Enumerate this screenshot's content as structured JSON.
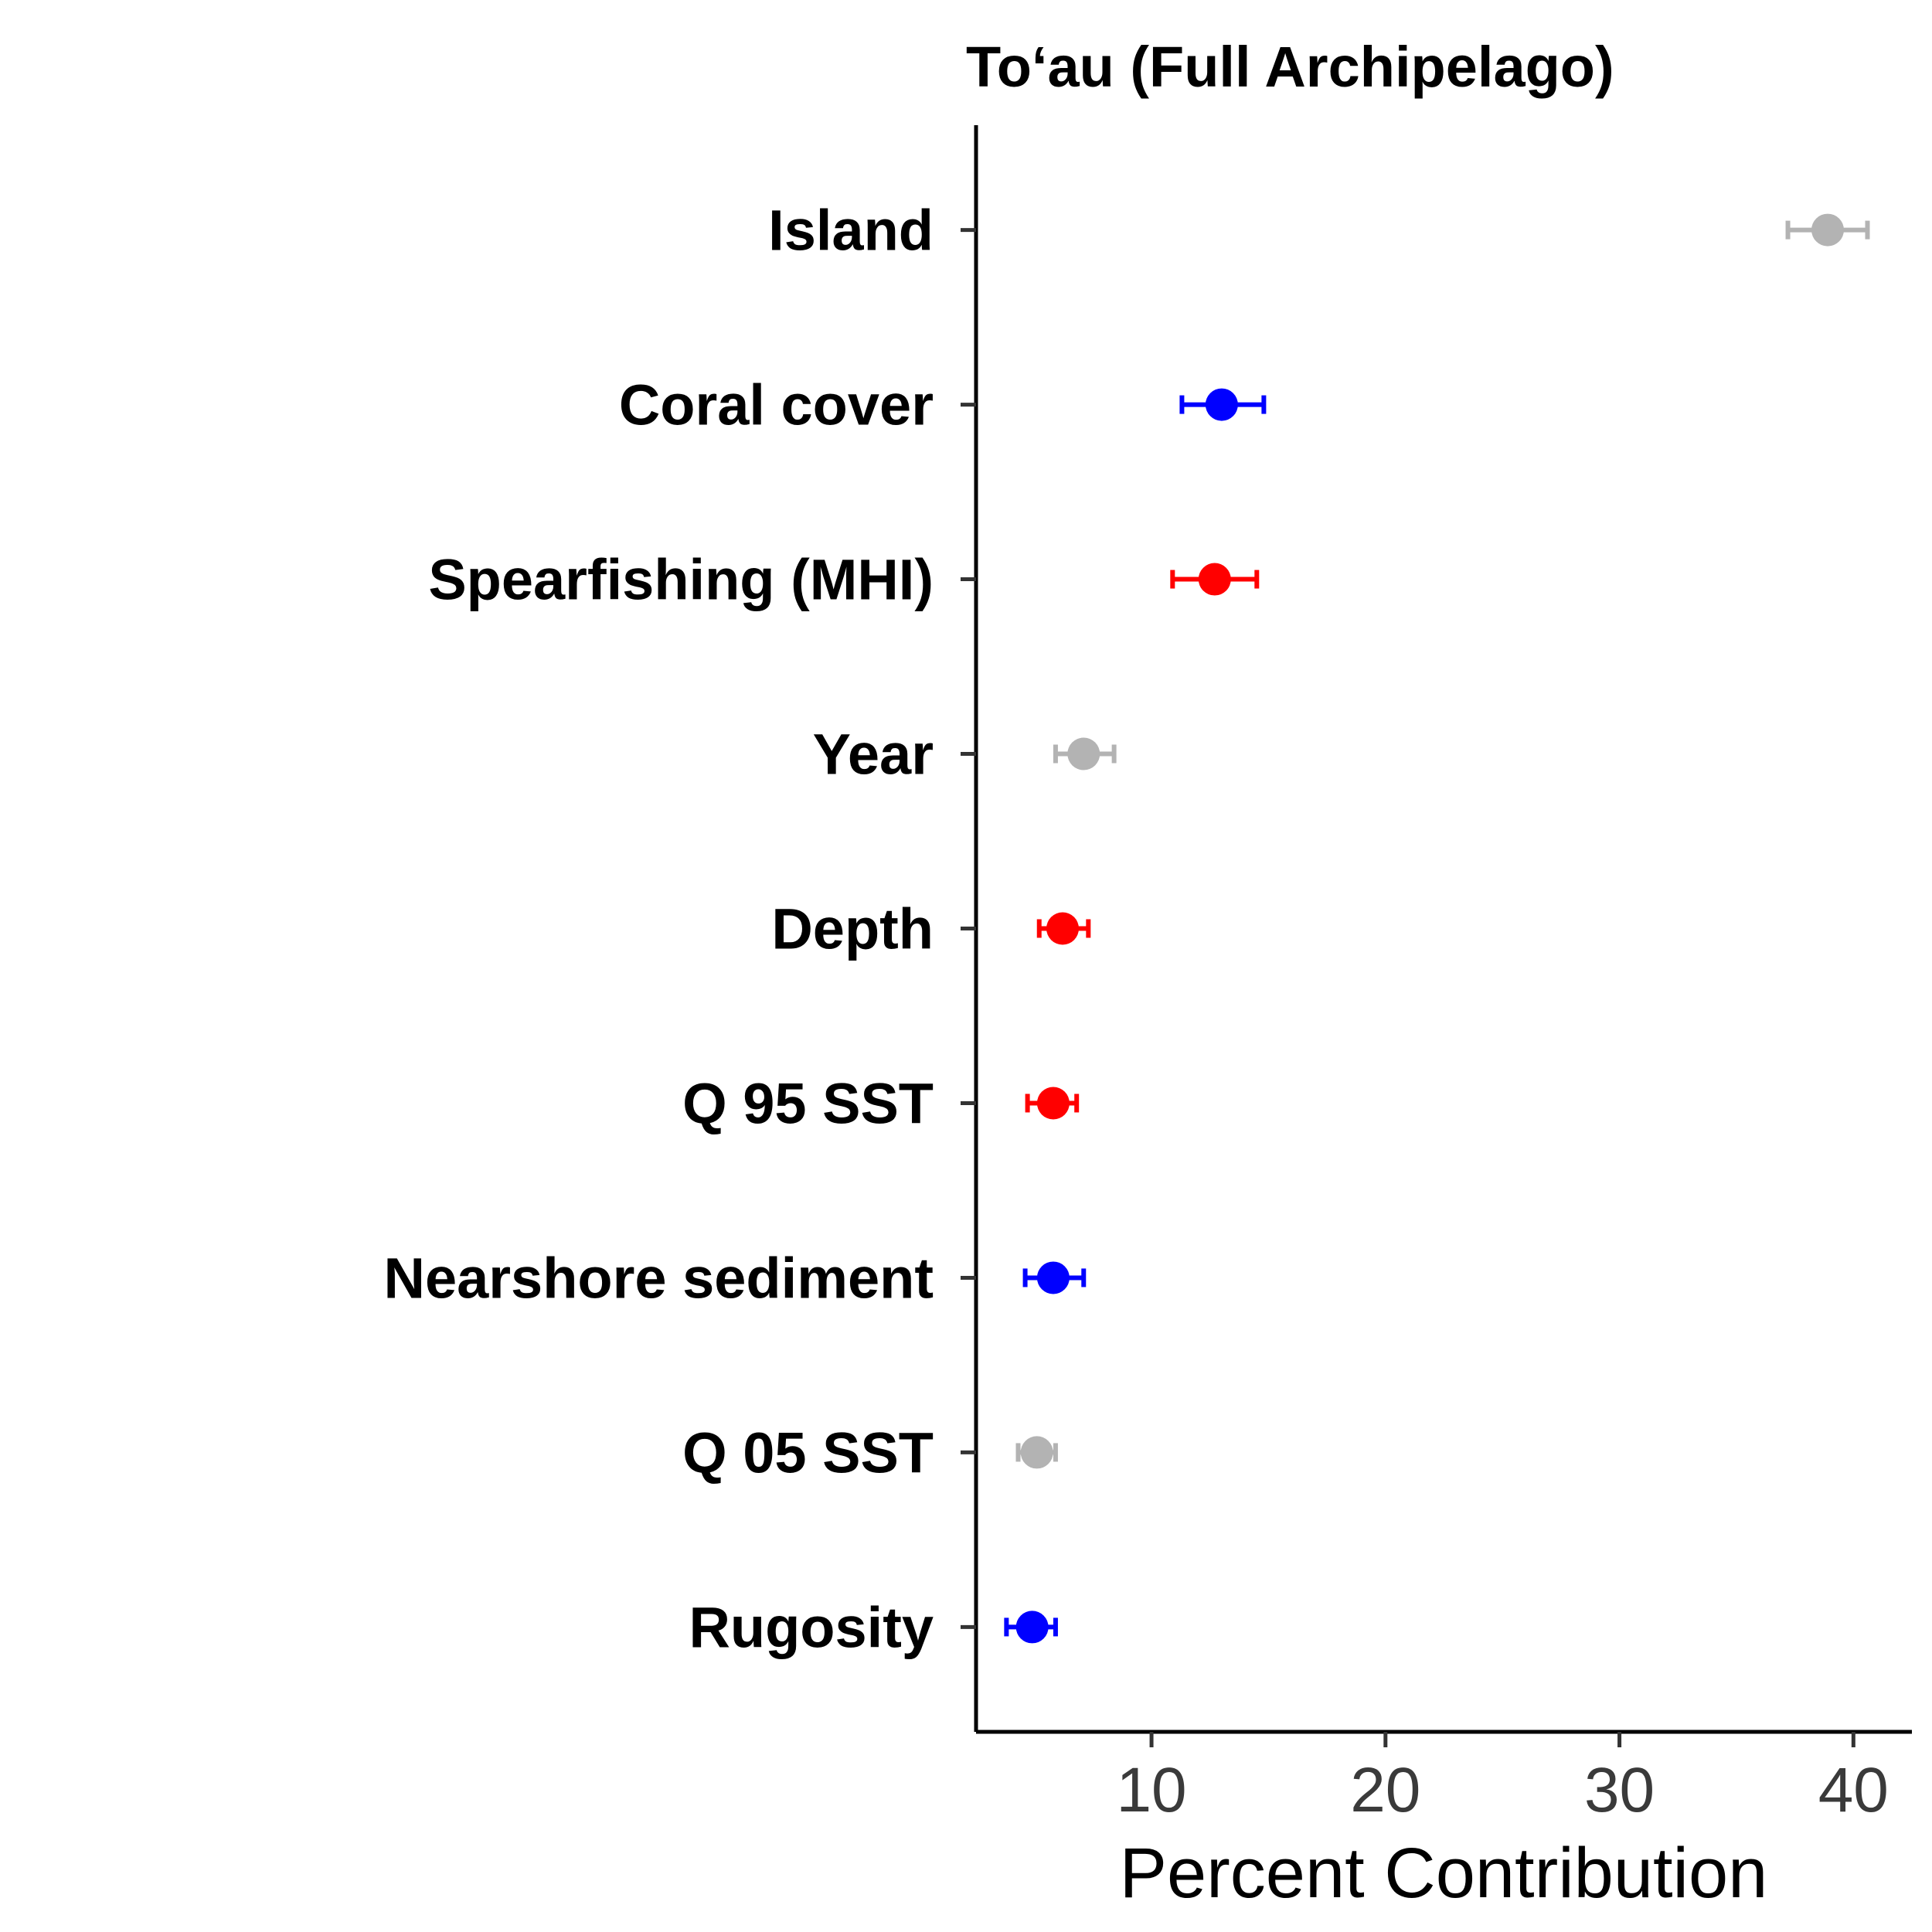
{
  "chart_data": {
    "type": "scatter",
    "title": "To‘au (Full Archipelago)",
    "xlabel": "Percent Contribution",
    "ylabel": "",
    "xlim": [
      2.5,
      42.5
    ],
    "x_ticks": [
      "10",
      "20",
      "30",
      "40"
    ],
    "grid": false,
    "colors": {
      "blue": "#0000ff",
      "red": "#ff0000",
      "grey": "#b3b3b3"
    },
    "points": [
      {
        "label": "Island",
        "value": 38.9,
        "low": 37.2,
        "high": 40.6,
        "color": "#b3b3b3"
      },
      {
        "label": "Coral cover ",
        "value": 13.0,
        "low": 11.3,
        "high": 14.8,
        "color": "#0000ff"
      },
      {
        "label": "Spearfishing (MHI)",
        "value": 12.7,
        "low": 10.9,
        "high": 14.5,
        "color": "#ff0000"
      },
      {
        "label": "Year ",
        "value": 7.1,
        "low": 5.9,
        "high": 8.4,
        "color": "#b3b3b3"
      },
      {
        "label": "Depth ",
        "value": 6.2,
        "low": 5.2,
        "high": 7.3,
        "color": "#ff0000"
      },
      {
        "label": "Q 95 SST",
        "value": 5.8,
        "low": 4.7,
        "high": 6.8,
        "color": "#ff0000"
      },
      {
        "label": "Nearshore sediment ",
        "value": 5.8,
        "low": 4.6,
        "high": 7.1,
        "color": "#0000ff"
      },
      {
        "label": "Q 05 SST",
        "value": 5.1,
        "low": 4.3,
        "high": 5.9,
        "color": "#b3b3b3"
      },
      {
        "label": "Rugosity ",
        "value": 4.9,
        "low": 3.8,
        "high": 5.9,
        "color": "#0000ff"
      }
    ]
  }
}
